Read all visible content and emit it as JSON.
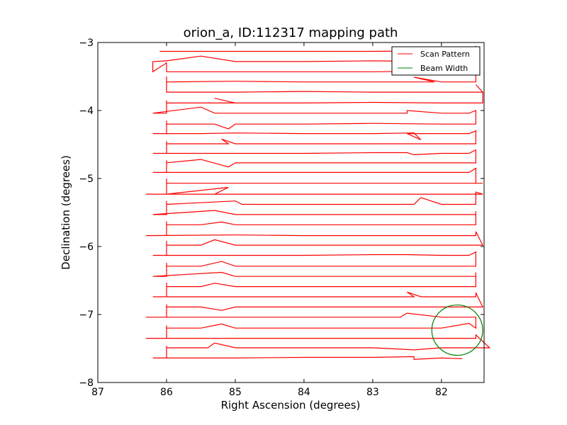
{
  "chart_data": {
    "type": "line",
    "title": "orion_a, ID:112317 mapping path",
    "xlabel": "Right Ascension (degrees)",
    "ylabel": "Declination (degrees)",
    "xlim": [
      87.0,
      81.38
    ],
    "ylim": [
      -8.0,
      -3.0
    ],
    "x_inverted": true,
    "grid": false,
    "legend_position": "top-right",
    "xticks": [
      {
        "value": 87,
        "label": "87"
      },
      {
        "value": 86,
        "label": "86"
      },
      {
        "value": 85,
        "label": "85"
      },
      {
        "value": 84,
        "label": "84"
      },
      {
        "value": 83,
        "label": "83"
      },
      {
        "value": 82,
        "label": "82"
      }
    ],
    "yticks": [
      {
        "value": -3,
        "label": "−3"
      },
      {
        "value": -4,
        "label": "−4"
      },
      {
        "value": -5,
        "label": "−5"
      },
      {
        "value": -6,
        "label": "−6"
      },
      {
        "value": -7,
        "label": "−7"
      },
      {
        "value": -8,
        "label": "−8"
      }
    ],
    "series": [
      {
        "name": "Scan Pattern",
        "color": "#ff0000",
        "style": "line",
        "scan_rows": [
          -3.13,
          -3.28,
          -3.43,
          -3.58,
          -3.73,
          -3.89,
          -4.04,
          -4.2,
          -4.34,
          -4.49,
          -4.63,
          -4.77,
          -4.91,
          -5.07,
          -5.23,
          -5.38,
          -5.53,
          -5.68,
          -5.84,
          -5.98,
          -6.13,
          -6.29,
          -6.44,
          -6.59,
          -6.74,
          -6.89,
          -7.04,
          -7.2,
          -7.35,
          -7.49,
          -7.64
        ],
        "x_east": 86.2,
        "x_west": 81.5,
        "points": [
          [
            86.1,
            -3.13
          ],
          [
            85.0,
            -3.13
          ],
          [
            84.0,
            -3.13
          ],
          [
            83.0,
            -3.13
          ],
          [
            82.0,
            -3.12
          ],
          [
            81.5,
            -3.13
          ],
          [
            81.5,
            -3.05
          ],
          [
            81.5,
            -3.13
          ],
          [
            81.5,
            -3.28
          ],
          [
            82.0,
            -3.28
          ],
          [
            83.0,
            -3.27
          ],
          [
            84.0,
            -3.28
          ],
          [
            85.0,
            -3.28
          ],
          [
            85.5,
            -3.2
          ],
          [
            86.0,
            -3.27
          ],
          [
            86.2,
            -3.28
          ],
          [
            86.2,
            -3.43
          ],
          [
            86.0,
            -3.3
          ],
          [
            86.0,
            -3.43
          ],
          [
            85.0,
            -3.43
          ],
          [
            84.0,
            -3.43
          ],
          [
            83.0,
            -3.43
          ],
          [
            82.0,
            -3.42
          ],
          [
            81.5,
            -3.43
          ],
          [
            81.5,
            -3.58
          ],
          [
            82.0,
            -3.58
          ],
          [
            82.4,
            -3.51
          ],
          [
            82.1,
            -3.58
          ],
          [
            83.0,
            -3.58
          ],
          [
            84.0,
            -3.58
          ],
          [
            85.0,
            -3.57
          ],
          [
            86.0,
            -3.58
          ],
          [
            86.0,
            -3.5
          ],
          [
            86.0,
            -3.58
          ],
          [
            86.0,
            -3.73
          ],
          [
            85.0,
            -3.73
          ],
          [
            84.0,
            -3.72
          ],
          [
            83.0,
            -3.73
          ],
          [
            82.0,
            -3.73
          ],
          [
            81.4,
            -3.73
          ],
          [
            81.5,
            -3.62
          ],
          [
            81.4,
            -3.73
          ],
          [
            81.4,
            -3.89
          ],
          [
            82.0,
            -3.89
          ],
          [
            83.0,
            -3.88
          ],
          [
            84.0,
            -3.89
          ],
          [
            85.0,
            -3.89
          ],
          [
            85.3,
            -3.82
          ],
          [
            85.0,
            -3.89
          ],
          [
            86.0,
            -3.89
          ],
          [
            86.0,
            -3.85
          ],
          [
            86.0,
            -3.89
          ],
          [
            86.0,
            -4.04
          ],
          [
            86.2,
            -4.04
          ],
          [
            85.5,
            -3.95
          ],
          [
            85.3,
            -4.04
          ],
          [
            85.0,
            -4.04
          ],
          [
            84.0,
            -4.04
          ],
          [
            83.0,
            -4.04
          ],
          [
            82.5,
            -4.04
          ],
          [
            82.5,
            -4.0
          ],
          [
            82.0,
            -4.04
          ],
          [
            81.6,
            -4.04
          ],
          [
            81.5,
            -4.0
          ],
          [
            81.5,
            -4.2
          ],
          [
            82.0,
            -4.2
          ],
          [
            83.0,
            -4.19
          ],
          [
            84.0,
            -4.2
          ],
          [
            85.0,
            -4.2
          ],
          [
            85.1,
            -4.27
          ],
          [
            85.3,
            -4.2
          ],
          [
            86.0,
            -4.2
          ],
          [
            86.0,
            -4.15
          ],
          [
            86.0,
            -4.2
          ],
          [
            86.0,
            -4.34
          ],
          [
            86.2,
            -4.34
          ],
          [
            85.5,
            -4.34
          ],
          [
            85.0,
            -4.33
          ],
          [
            84.0,
            -4.34
          ],
          [
            83.0,
            -4.34
          ],
          [
            82.4,
            -4.33
          ],
          [
            82.3,
            -4.43
          ],
          [
            82.5,
            -4.34
          ],
          [
            81.6,
            -4.34
          ],
          [
            81.5,
            -4.3
          ],
          [
            81.5,
            -4.34
          ],
          [
            81.5,
            -4.49
          ],
          [
            82.0,
            -4.49
          ],
          [
            83.0,
            -4.49
          ],
          [
            84.0,
            -4.49
          ],
          [
            85.0,
            -4.49
          ],
          [
            85.2,
            -4.42
          ],
          [
            85.1,
            -4.49
          ],
          [
            86.0,
            -4.49
          ],
          [
            86.0,
            -4.45
          ],
          [
            86.0,
            -4.49
          ],
          [
            86.0,
            -4.63
          ],
          [
            86.2,
            -4.63
          ],
          [
            85.0,
            -4.63
          ],
          [
            84.0,
            -4.63
          ],
          [
            83.0,
            -4.62
          ],
          [
            82.5,
            -4.62
          ],
          [
            82.4,
            -4.65
          ],
          [
            82.0,
            -4.63
          ],
          [
            81.6,
            -4.63
          ],
          [
            81.5,
            -4.58
          ],
          [
            81.5,
            -4.77
          ],
          [
            82.0,
            -4.77
          ],
          [
            83.0,
            -4.77
          ],
          [
            84.0,
            -4.77
          ],
          [
            85.0,
            -4.77
          ],
          [
            85.1,
            -4.83
          ],
          [
            85.5,
            -4.72
          ],
          [
            86.0,
            -4.77
          ],
          [
            86.0,
            -4.73
          ],
          [
            86.0,
            -4.77
          ],
          [
            86.0,
            -4.91
          ],
          [
            86.2,
            -4.91
          ],
          [
            85.0,
            -4.91
          ],
          [
            84.0,
            -4.91
          ],
          [
            83.0,
            -4.91
          ],
          [
            82.0,
            -4.91
          ],
          [
            81.6,
            -4.91
          ],
          [
            81.5,
            -4.85
          ],
          [
            81.5,
            -5.07
          ],
          [
            81.4,
            -5.07
          ],
          [
            82.0,
            -5.07
          ],
          [
            83.0,
            -5.07
          ],
          [
            84.0,
            -5.07
          ],
          [
            85.0,
            -5.07
          ],
          [
            86.0,
            -5.07
          ],
          [
            86.0,
            -5.0
          ],
          [
            86.0,
            -5.23
          ],
          [
            86.3,
            -5.23
          ],
          [
            85.3,
            -5.23
          ],
          [
            85.1,
            -5.13
          ],
          [
            86.0,
            -5.23
          ],
          [
            85.0,
            -5.23
          ],
          [
            84.0,
            -5.23
          ],
          [
            83.0,
            -5.23
          ],
          [
            82.0,
            -5.23
          ],
          [
            81.4,
            -5.23
          ],
          [
            81.5,
            -5.2
          ],
          [
            81.5,
            -5.38
          ],
          [
            82.0,
            -5.38
          ],
          [
            82.3,
            -5.28
          ],
          [
            82.4,
            -5.38
          ],
          [
            83.0,
            -5.38
          ],
          [
            84.0,
            -5.38
          ],
          [
            84.9,
            -5.38
          ],
          [
            85.0,
            -5.33
          ],
          [
            86.0,
            -5.38
          ],
          [
            86.0,
            -5.33
          ],
          [
            86.0,
            -5.38
          ],
          [
            86.0,
            -5.53
          ],
          [
            86.2,
            -5.53
          ],
          [
            85.3,
            -5.47
          ],
          [
            85.0,
            -5.53
          ],
          [
            84.0,
            -5.53
          ],
          [
            83.0,
            -5.53
          ],
          [
            82.0,
            -5.53
          ],
          [
            81.5,
            -5.53
          ],
          [
            81.5,
            -5.48
          ],
          [
            81.5,
            -5.68
          ],
          [
            82.0,
            -5.68
          ],
          [
            83.0,
            -5.68
          ],
          [
            84.0,
            -5.68
          ],
          [
            85.0,
            -5.68
          ],
          [
            85.2,
            -5.64
          ],
          [
            85.5,
            -5.68
          ],
          [
            86.0,
            -5.68
          ],
          [
            86.0,
            -5.63
          ],
          [
            86.0,
            -5.84
          ],
          [
            86.3,
            -5.84
          ],
          [
            85.0,
            -5.83
          ],
          [
            84.0,
            -5.84
          ],
          [
            83.0,
            -5.84
          ],
          [
            82.0,
            -5.84
          ],
          [
            81.5,
            -5.84
          ],
          [
            81.5,
            -5.78
          ],
          [
            81.4,
            -5.98
          ],
          [
            82.0,
            -5.98
          ],
          [
            83.0,
            -5.98
          ],
          [
            84.0,
            -5.98
          ],
          [
            85.0,
            -5.98
          ],
          [
            85.3,
            -5.9
          ],
          [
            85.5,
            -5.98
          ],
          [
            86.0,
            -5.98
          ],
          [
            86.0,
            -5.92
          ],
          [
            86.0,
            -6.13
          ],
          [
            86.2,
            -6.13
          ],
          [
            85.0,
            -6.13
          ],
          [
            84.0,
            -6.13
          ],
          [
            83.0,
            -6.12
          ],
          [
            82.5,
            -6.12
          ],
          [
            82.0,
            -6.13
          ],
          [
            81.6,
            -6.13
          ],
          [
            81.5,
            -6.08
          ],
          [
            81.5,
            -6.29
          ],
          [
            82.0,
            -6.29
          ],
          [
            83.0,
            -6.29
          ],
          [
            84.0,
            -6.29
          ],
          [
            85.0,
            -6.29
          ],
          [
            85.2,
            -6.22
          ],
          [
            85.5,
            -6.29
          ],
          [
            86.0,
            -6.29
          ],
          [
            86.0,
            -6.24
          ],
          [
            86.0,
            -6.44
          ],
          [
            86.2,
            -6.44
          ],
          [
            85.2,
            -6.38
          ],
          [
            85.0,
            -6.44
          ],
          [
            84.0,
            -6.44
          ],
          [
            83.0,
            -6.44
          ],
          [
            82.2,
            -6.44
          ],
          [
            81.5,
            -6.44
          ],
          [
            81.5,
            -6.38
          ],
          [
            81.5,
            -6.59
          ],
          [
            82.0,
            -6.59
          ],
          [
            83.0,
            -6.59
          ],
          [
            84.0,
            -6.59
          ],
          [
            85.0,
            -6.59
          ],
          [
            85.3,
            -6.54
          ],
          [
            85.5,
            -6.59
          ],
          [
            86.0,
            -6.59
          ],
          [
            86.0,
            -6.53
          ],
          [
            86.0,
            -6.74
          ],
          [
            86.2,
            -6.74
          ],
          [
            85.0,
            -6.74
          ],
          [
            84.0,
            -6.74
          ],
          [
            83.0,
            -6.74
          ],
          [
            82.4,
            -6.74
          ],
          [
            82.5,
            -6.67
          ],
          [
            82.3,
            -6.74
          ],
          [
            81.5,
            -6.74
          ],
          [
            81.5,
            -6.68
          ],
          [
            81.4,
            -6.89
          ],
          [
            82.0,
            -6.89
          ],
          [
            83.0,
            -6.89
          ],
          [
            84.0,
            -6.89
          ],
          [
            85.0,
            -6.89
          ],
          [
            85.2,
            -6.94
          ],
          [
            85.5,
            -6.89
          ],
          [
            86.0,
            -6.89
          ],
          [
            86.0,
            -6.85
          ],
          [
            86.0,
            -7.04
          ],
          [
            86.3,
            -7.04
          ],
          [
            85.0,
            -7.04
          ],
          [
            84.0,
            -7.04
          ],
          [
            83.0,
            -7.04
          ],
          [
            82.6,
            -7.04
          ],
          [
            82.5,
            -6.98
          ],
          [
            82.0,
            -7.04
          ],
          [
            81.5,
            -7.04
          ],
          [
            81.5,
            -7.2
          ],
          [
            81.6,
            -7.13
          ],
          [
            82.0,
            -7.2
          ],
          [
            83.0,
            -7.2
          ],
          [
            84.0,
            -7.2
          ],
          [
            85.0,
            -7.2
          ],
          [
            85.2,
            -7.14
          ],
          [
            85.5,
            -7.2
          ],
          [
            86.0,
            -7.2
          ],
          [
            86.0,
            -7.16
          ],
          [
            86.0,
            -7.35
          ],
          [
            86.3,
            -7.35
          ],
          [
            85.0,
            -7.35
          ],
          [
            84.0,
            -7.35
          ],
          [
            83.0,
            -7.35
          ],
          [
            82.0,
            -7.35
          ],
          [
            81.5,
            -7.35
          ],
          [
            81.5,
            -7.3
          ],
          [
            81.3,
            -7.49
          ],
          [
            82.0,
            -7.49
          ],
          [
            82.4,
            -7.52
          ],
          [
            83.0,
            -7.49
          ],
          [
            84.0,
            -7.49
          ],
          [
            85.0,
            -7.49
          ],
          [
            85.3,
            -7.42
          ],
          [
            85.4,
            -7.49
          ],
          [
            86.0,
            -7.49
          ],
          [
            86.0,
            -7.46
          ],
          [
            86.0,
            -7.64
          ],
          [
            86.2,
            -7.64
          ],
          [
            85.0,
            -7.64
          ],
          [
            84.0,
            -7.63
          ],
          [
            83.0,
            -7.63
          ],
          [
            82.4,
            -7.62
          ],
          [
            82.4,
            -7.66
          ],
          [
            82.0,
            -7.64
          ],
          [
            81.7,
            -7.65
          ]
        ]
      },
      {
        "name": "Beam Width",
        "color": "#007f00",
        "style": "circle",
        "center": [
          81.77,
          -7.23
        ],
        "radius": 0.37
      }
    ]
  }
}
